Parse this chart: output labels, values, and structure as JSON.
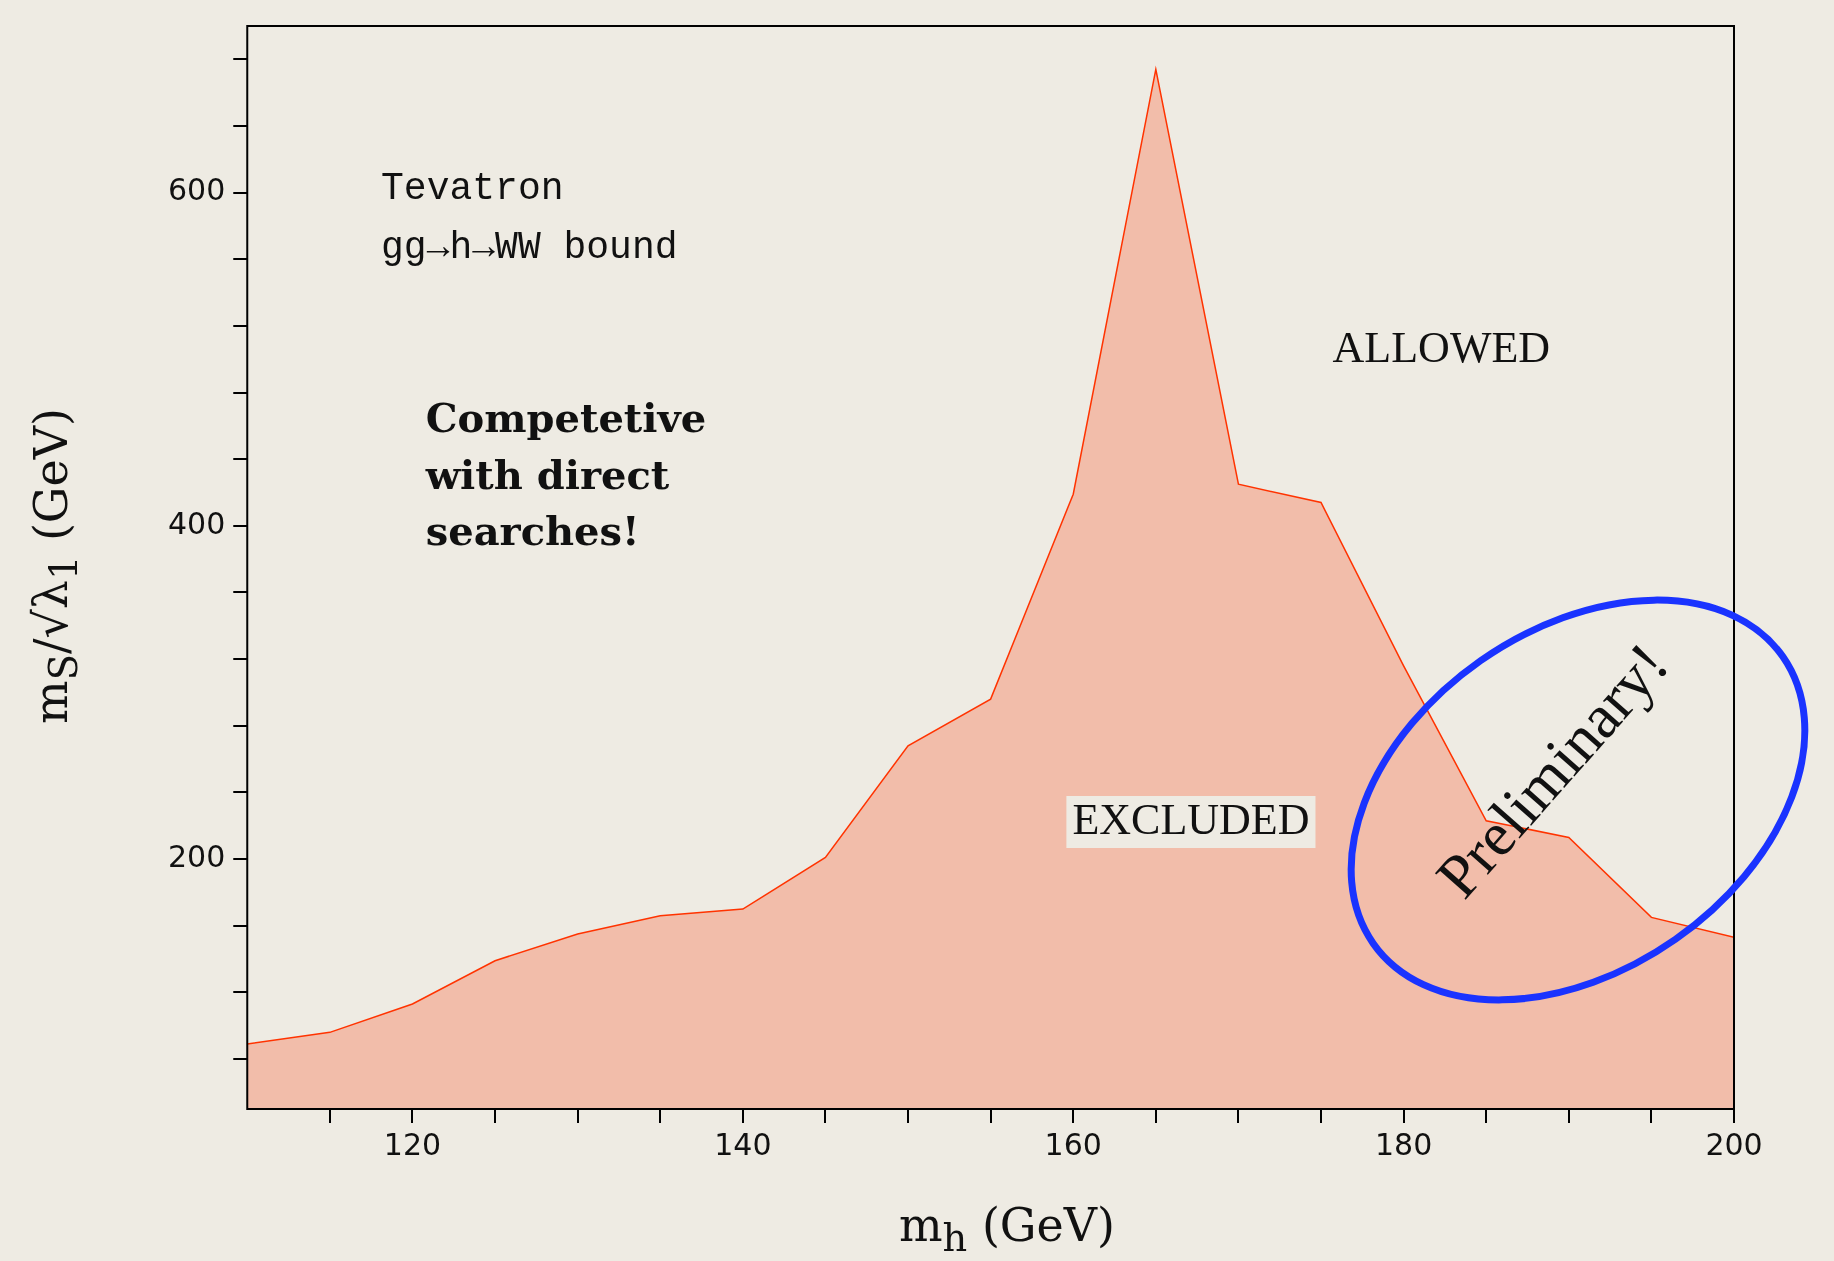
{
  "chart_data": {
    "type": "area",
    "xlabel": "m$_{h}$ (GeV)",
    "ylabel": "m$_{S}$/√λ$_{1}$ (GeV)",
    "x": [
      110,
      115,
      120,
      125,
      130,
      135,
      140,
      145,
      150,
      155,
      160,
      165,
      170,
      175,
      180,
      185,
      190,
      195,
      200
    ],
    "series": [
      {
        "color": "#ff3300",
        "values": [
          89,
          96,
          113,
          139,
          155,
          166,
          170,
          201,
          268,
          296,
          419,
          674,
          425,
          414,
          316,
          223,
          213,
          165,
          153
        ]
      }
    ],
    "xlim": [
      110,
      200
    ],
    "xticks": [
      {
        "value": 115,
        "label": null
      },
      120,
      {
        "value": 125,
        "label": null
      },
      {
        "value": 130,
        "label": null
      },
      {
        "value": 135,
        "label": null
      },
      140,
      {
        "value": 145,
        "label": null
      },
      {
        "value": 150,
        "label": null
      },
      {
        "value": 155,
        "label": null
      },
      160,
      {
        "value": 165,
        "label": null
      },
      {
        "value": 170,
        "label": null
      },
      {
        "value": 175,
        "label": null
      },
      180,
      {
        "value": 185,
        "label": null
      },
      {
        "value": 190,
        "label": null
      },
      {
        "value": 195,
        "label": null
      },
      200
    ],
    "ylim": [
      50,
      700
    ],
    "yticks": [
      {
        "value": 80,
        "label": null
      },
      {
        "value": 120,
        "label": null
      },
      {
        "value": 160,
        "label": null
      },
      200,
      {
        "value": 240,
        "label": null
      },
      {
        "value": 280,
        "label": null
      },
      {
        "value": 320,
        "label": null
      },
      {
        "value": 360,
        "label": null
      },
      400,
      {
        "value": 440,
        "label": null
      },
      {
        "value": 480,
        "label": null
      },
      {
        "value": 520,
        "label": null
      },
      {
        "value": 560,
        "label": null
      },
      600,
      {
        "value": 640,
        "label": null
      },
      {
        "value": 680,
        "label": null
      }
    ],
    "grid": false,
    "legend": false,
    "annotations": [
      "Tevatron",
      "gg→h→WW bound",
      "Competetive",
      "with direct",
      "searches!",
      "ALLOWED",
      "EXCLUDED",
      "Preliminary!"
    ]
  }
}
